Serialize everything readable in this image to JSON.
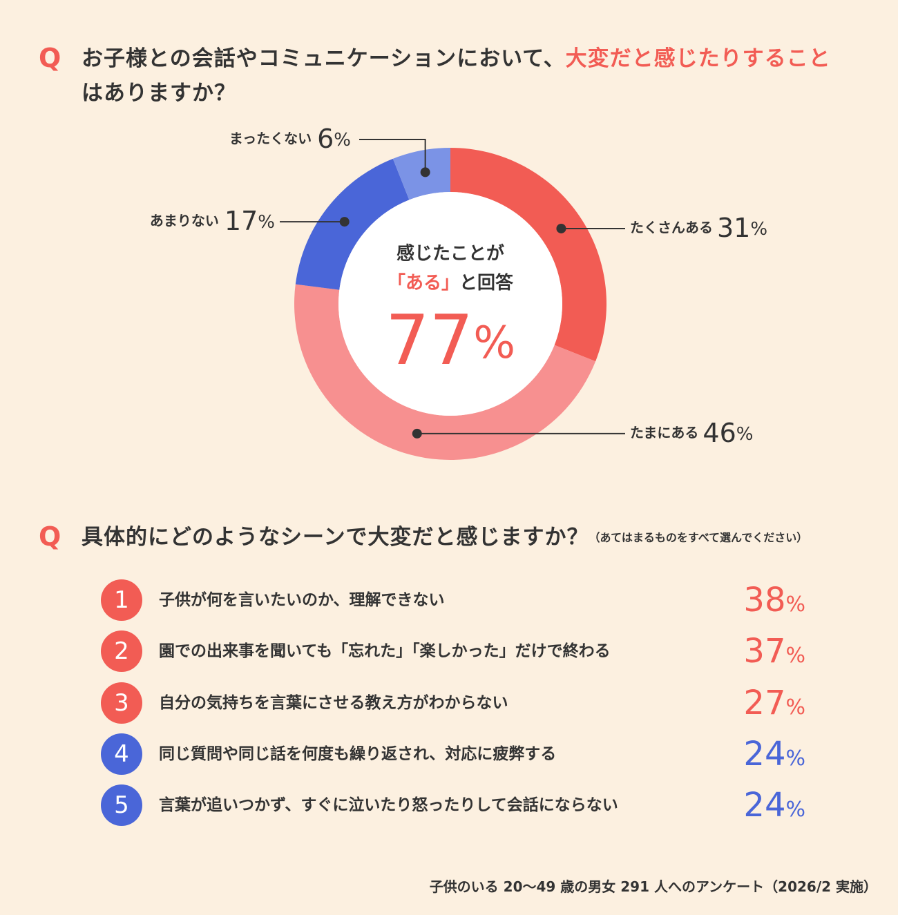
{
  "chart_data": {
    "type": "donut",
    "title_marker": "Q",
    "title": [
      "お子様との会話やコミュニケーションにおいて、",
      "大変だと感じたりすること",
      "はありますか？"
    ],
    "categories": [
      "たくさんある",
      "たまにある",
      "あまりない",
      "まったくない"
    ],
    "values": [
      31,
      46,
      17,
      6
    ],
    "value_labels": [
      "31%",
      "46%",
      "17%",
      "6%"
    ],
    "colors": [
      "#f25c54",
      "#f79090",
      "#4a66d8",
      "#7b93e6"
    ],
    "center_text": [
      "感じたことが",
      "「ある」",
      "と回答"
    ],
    "center_label": "77%"
  },
  "ranking": {
    "title_marker": "Q",
    "title": "具体的にどのようなシーンで大変だと感じますか？",
    "note": "（あてはまるものをすべて選んでください）",
    "items": [
      {
        "rank": "1",
        "text": "子供が何を言いたいのか、理解できない",
        "value": "38%",
        "color": "#f25c54"
      },
      {
        "rank": "2",
        "text": "園での出来事を聞いても「忘れた」「楽しかった」だけで終わる",
        "value": "37%",
        "color": "#f25c54"
      },
      {
        "rank": "3",
        "text": "自分の気持ちを言葉にさせる教え方がわからない",
        "value": "27%",
        "color": "#f25c54"
      },
      {
        "rank": "4",
        "text": "同じ質問や同じ話を何度も繰り返され、対応に疲弊する",
        "value": "24%",
        "color": "#4a66d8"
      },
      {
        "rank": "5",
        "text": "言葉が追いつかず、すぐに泣いたり怒ったりして会話にならない",
        "value": "24%",
        "color": "#4a66d8"
      }
    ]
  },
  "footer": "子供のいる 20〜49 歳の男女 291 人へのアンケート（2026/2 実施）"
}
